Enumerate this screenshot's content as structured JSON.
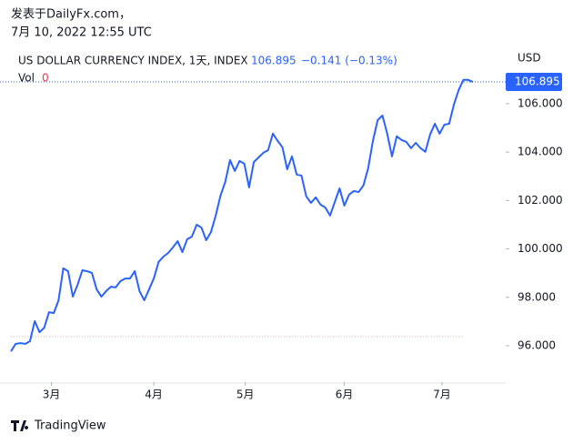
{
  "header": {
    "source": "发表于DailyFx.com，",
    "timestamp": "7月 10, 2022 12:55 UTC"
  },
  "chart_data": {
    "type": "line",
    "legend": {
      "symbol": "US DOLLAR CURRENCY INDEX, 1天, INDEX",
      "price": "106.895",
      "change": "−0.141 (−0.13%)",
      "vol_label": "Vol",
      "vol_value": "0"
    },
    "currency": "USD",
    "series": [
      {
        "name": "US DOLLAR CURRENCY INDEX",
        "color": "#2962ff",
        "values": [
          95.77,
          96.08,
          96.11,
          96.08,
          96.19,
          97.02,
          96.56,
          96.75,
          97.39,
          97.35,
          97.88,
          99.2,
          99.08,
          98.03,
          98.52,
          99.12,
          99.08,
          99.01,
          98.33,
          98.03,
          98.26,
          98.44,
          98.41,
          98.67,
          98.78,
          98.78,
          99.08,
          98.26,
          97.88,
          98.33,
          98.78,
          99.46,
          99.68,
          99.83,
          100.06,
          100.32,
          99.87,
          100.4,
          100.51,
          101.0,
          100.88,
          100.36,
          100.7,
          101.38,
          102.2,
          102.77,
          103.67,
          103.22,
          103.63,
          103.52,
          102.54,
          103.59,
          103.78,
          103.97,
          104.08,
          104.76,
          104.46,
          104.2,
          103.29,
          103.82,
          103.07,
          103.03,
          102.17,
          101.9,
          102.13,
          101.83,
          101.71,
          101.38,
          101.94,
          102.5,
          101.79,
          102.24,
          102.39,
          102.35,
          102.62,
          103.33,
          104.46,
          105.32,
          105.51,
          104.76,
          103.82,
          104.65,
          104.5,
          104.42,
          104.16,
          104.38,
          104.16,
          104.01,
          104.72,
          105.17,
          104.76,
          105.13,
          105.17,
          105.96,
          106.56,
          106.98,
          106.98,
          106.895
        ]
      }
    ],
    "ylim": [
      94.5,
      108.4
    ],
    "yticks": [
      {
        "value": 96,
        "label": "96.000"
      },
      {
        "value": 98,
        "label": "98.000"
      },
      {
        "value": 100,
        "label": "100.000"
      },
      {
        "value": 102,
        "label": "102.000"
      },
      {
        "value": 104,
        "label": "104.000"
      },
      {
        "value": 106,
        "label": "106.000"
      }
    ],
    "xlim": [
      0,
      97
    ],
    "xticks": [
      {
        "value": 8.5,
        "label": "3月"
      },
      {
        "value": 30,
        "label": "4月"
      },
      {
        "value": 49.2,
        "label": "5月"
      },
      {
        "value": 70,
        "label": "6月"
      },
      {
        "value": 90.5,
        "label": "7月"
      }
    ]
  },
  "footer": {
    "brand": "TradingView"
  }
}
